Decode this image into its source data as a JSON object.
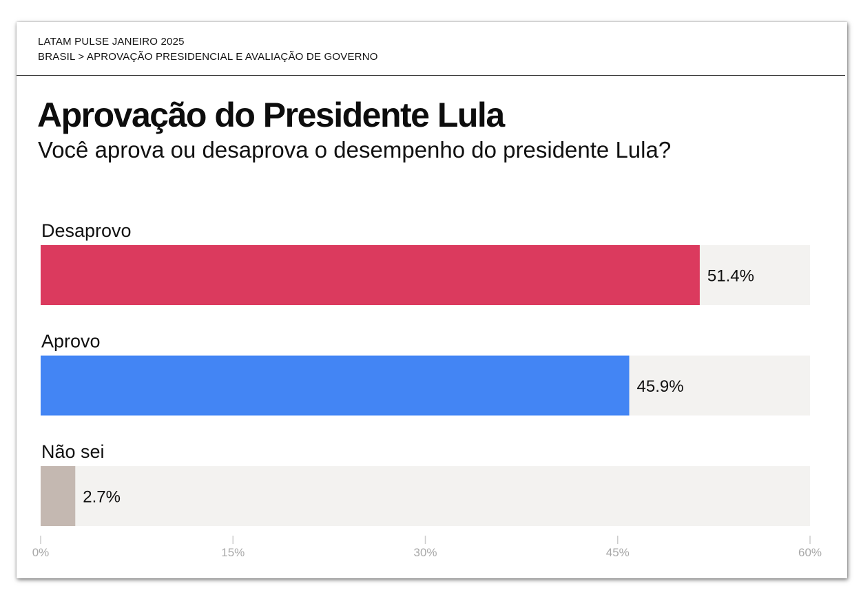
{
  "header": {
    "kicker_line1": "LATAM PULSE JANEIRO 2025",
    "kicker_line2": "BRASIL > APROVAÇÃO PRESIDENCIAL E AVALIAÇÃO DE GOVERNO"
  },
  "colors": {
    "track": "#f3f2f0",
    "tick_axis": "#cccccc"
  },
  "chart_data": {
    "type": "bar",
    "orientation": "horizontal",
    "title": "Aprovação do Presidente Lula",
    "subtitle": "Você aprova ou desaprova o desempenho do presidente Lula?",
    "categories": [
      "Desaprovo",
      "Aprovo",
      "Não sei"
    ],
    "values": [
      51.4,
      45.9,
      2.7
    ],
    "value_labels": [
      "51.4%",
      "45.9%",
      "2.7%"
    ],
    "bar_colors": [
      "#db3a5e",
      "#4385f4",
      "#c4b8b1"
    ],
    "xlim": [
      0,
      60
    ],
    "ticks": [
      0,
      15,
      30,
      45,
      60
    ],
    "tick_labels": [
      "0%",
      "15%",
      "30%",
      "45%",
      "60%"
    ],
    "xlabel": "",
    "ylabel": "",
    "grid": false,
    "legend": "none"
  }
}
